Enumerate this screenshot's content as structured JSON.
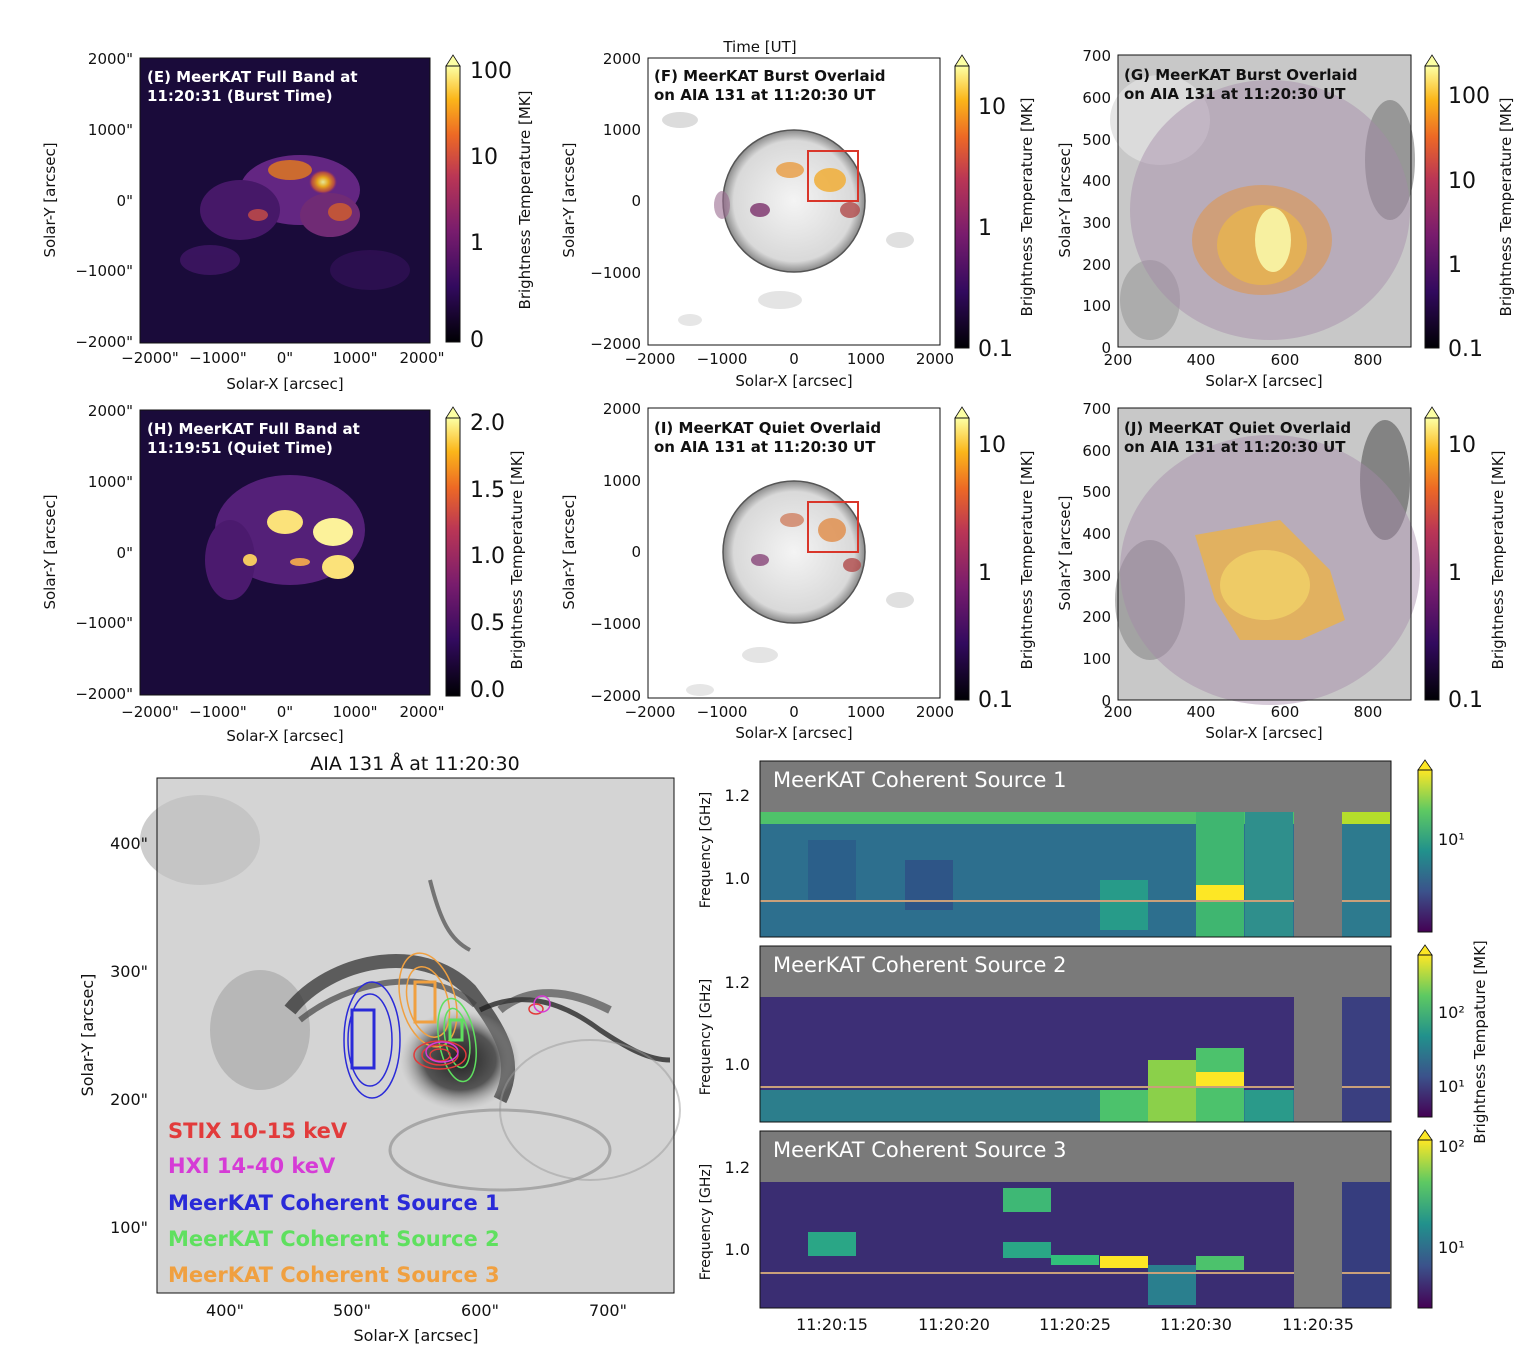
{
  "top_title_fragment": "Time [UT]",
  "panels": {
    "E": {
      "label_line1": "(E) MeerKAT Full Band at",
      "label_line2": "11:20:31 (Burst Time)",
      "xlabel": "Solar-X [arcsec]",
      "ylabel": "Solar-Y [arcsec]",
      "xticks": [
        "−2000\"",
        "−1000\"",
        "0\"",
        "1000\"",
        "2000\""
      ],
      "yticks": [
        "2000\"",
        "1000\"",
        "0\"",
        "−1000\"",
        "−2000\""
      ],
      "cbar_label": "Brightness Temperature [MK]",
      "cbar_ticks": [
        "100",
        "10",
        "1",
        "0"
      ]
    },
    "F": {
      "label_line1": "(F) MeerKAT Burst Overlaid",
      "label_line2": "on AIA 131 at 11:20:30 UT",
      "xlabel": "Solar-X [arcsec]",
      "ylabel": "Solar-Y [arcsec]",
      "xticks": [
        "−2000",
        "−1000",
        "0",
        "1000",
        "2000"
      ],
      "yticks": [
        "2000",
        "1000",
        "0",
        "−1000",
        "−2000"
      ],
      "cbar_label": "Brightness Temperature [MK]",
      "cbar_ticks": [
        "10",
        "1",
        "0.1"
      ]
    },
    "G": {
      "label_line1": "(G) MeerKAT Burst Overlaid",
      "label_line2": "on AIA 131 at 11:20:30 UT",
      "xlabel": "Solar-X [arcsec]",
      "ylabel": "Solar-Y [arcsec]",
      "xticks": [
        "200",
        "400",
        "600",
        "800"
      ],
      "yticks": [
        "700",
        "600",
        "500",
        "400",
        "300",
        "200",
        "100",
        "0"
      ],
      "cbar_label": "Brightness Temperature [MK]",
      "cbar_ticks": [
        "100",
        "10",
        "1",
        "0.1"
      ]
    },
    "H": {
      "label_line1": "(H) MeerKAT Full Band at",
      "label_line2": "11:19:51 (Quiet Time)",
      "xlabel": "Solar-X [arcsec]",
      "ylabel": "Solar-Y [arcsec]",
      "xticks": [
        "−2000\"",
        "−1000\"",
        "0\"",
        "1000\"",
        "2000\""
      ],
      "yticks": [
        "2000\"",
        "1000\"",
        "0\"",
        "−1000\"",
        "−2000\""
      ],
      "cbar_label": "Brightness Temperature [MK]",
      "cbar_ticks": [
        "2.0",
        "1.5",
        "1.0",
        "0.5",
        "0.0"
      ]
    },
    "I": {
      "label_line1": "(I) MeerKAT Quiet Overlaid",
      "label_line2": "on AIA 131 at 11:20:30 UT",
      "xlabel": "Solar-X [arcsec]",
      "ylabel": "Solar-Y [arcsec]",
      "xticks": [
        "−2000",
        "−1000",
        "0",
        "1000",
        "2000"
      ],
      "yticks": [
        "2000",
        "1000",
        "0",
        "−1000",
        "−2000"
      ],
      "cbar_label": "Brightness Temperature [MK]",
      "cbar_ticks": [
        "10",
        "1",
        "0.1"
      ]
    },
    "J": {
      "label_line1": "(J) MeerKAT Quiet Overlaid",
      "label_line2": "on AIA 131 at 11:20:30 UT",
      "xlabel": "Solar-X [arcsec]",
      "ylabel": "Solar-Y [arcsec]",
      "xticks": [
        "200",
        "400",
        "600",
        "800"
      ],
      "yticks": [
        "700",
        "600",
        "500",
        "400",
        "300",
        "200",
        "100",
        "0"
      ],
      "cbar_label": "Brightness Temperature [MK]",
      "cbar_ticks": [
        "10",
        "1",
        "0.1"
      ]
    },
    "AIA": {
      "title": "AIA 131 Å at 11:20:30",
      "xlabel": "Solar-X [arcsec]",
      "ylabel": "Solar-Y [arcsec]",
      "xticks": [
        "400\"",
        "500\"",
        "600\"",
        "700\""
      ],
      "yticks": [
        "400\"",
        "300\"",
        "200\"",
        "100\""
      ],
      "legend": [
        {
          "text": "STIX 10-15 keV",
          "color": "#e23b3b"
        },
        {
          "text": "HXI 14-40 keV",
          "color": "#d63bd6"
        },
        {
          "text": "MeerKAT Coherent Source 1",
          "color": "#2a2ad8"
        },
        {
          "text": "MeerKAT Coherent Source 2",
          "color": "#5fe05f"
        },
        {
          "text": "MeerKAT Coherent Source 3",
          "color": "#f0a040"
        }
      ]
    },
    "spectra": {
      "ylabel": "Frequency [GHz]",
      "yticks": [
        "1.2",
        "1.0"
      ],
      "xticks": [
        "11:20:15",
        "11:20:20",
        "11:20:25",
        "11:20:30",
        "11:20:35"
      ],
      "cbar_label": "Brightness Tempature [MK]",
      "rows": [
        {
          "title": "MeerKAT Coherent Source 1",
          "cbar_ticks": [
            "10¹"
          ]
        },
        {
          "title": "MeerKAT Coherent Source 2",
          "cbar_ticks": [
            "10²",
            "10¹"
          ]
        },
        {
          "title": "MeerKAT Coherent Source 3",
          "cbar_ticks": [
            "10²",
            "10¹"
          ]
        }
      ]
    }
  },
  "chart_data": [
    {
      "type": "heatmap",
      "panel": "E",
      "title": "(E) MeerKAT Full Band at 11:20:31 (Burst Time)",
      "xlim": [
        -2000,
        2000
      ],
      "ylim": [
        -2000,
        2000
      ],
      "colorbar": "Brightness Temperature [MK]",
      "cbar_ticks": [
        0,
        1,
        10,
        100
      ]
    },
    {
      "type": "heatmap",
      "panel": "F",
      "title": "(F) MeerKAT Burst Overlaid on AIA 131 at 11:20:30 UT",
      "xlim": [
        -2000,
        2000
      ],
      "ylim": [
        -2000,
        2000
      ],
      "cbar_ticks": [
        0.1,
        1,
        10
      ]
    },
    {
      "type": "heatmap",
      "panel": "G",
      "title": "(G) MeerKAT Burst Overlaid on AIA 131 at 11:20:30 UT",
      "xlim": [
        200,
        900
      ],
      "ylim": [
        0,
        700
      ],
      "cbar_ticks": [
        0.1,
        1,
        10,
        100
      ]
    },
    {
      "type": "heatmap",
      "panel": "H",
      "title": "(H) MeerKAT Full Band at 11:19:51 (Quiet Time)",
      "xlim": [
        -2000,
        2000
      ],
      "ylim": [
        -2000,
        2000
      ],
      "cbar_ticks": [
        0.0,
        0.5,
        1.0,
        1.5,
        2.0
      ]
    },
    {
      "type": "heatmap",
      "panel": "I",
      "title": "(I) MeerKAT Quiet Overlaid on AIA 131 at 11:20:30 UT",
      "xlim": [
        -2000,
        2000
      ],
      "ylim": [
        -2000,
        2000
      ],
      "cbar_ticks": [
        0.1,
        1,
        10
      ]
    },
    {
      "type": "heatmap",
      "panel": "J",
      "title": "(J) MeerKAT Quiet Overlaid on AIA 131 at 11:20:30 UT",
      "xlim": [
        200,
        900
      ],
      "ylim": [
        0,
        700
      ],
      "cbar_ticks": [
        0.1,
        1,
        10
      ]
    },
    {
      "type": "heatmap",
      "panel": "AIA",
      "title": "AIA 131 Å at 11:20:30",
      "xlim": [
        350,
        750
      ],
      "ylim": [
        60,
        450
      ]
    },
    {
      "type": "heatmap",
      "panel": "spectrum-1",
      "title": "MeerKAT Coherent Source 1",
      "ylim": [
        0.85,
        1.25
      ],
      "xticks": [
        "11:20:15",
        "11:20:20",
        "11:20:25",
        "11:20:30",
        "11:20:35"
      ]
    },
    {
      "type": "heatmap",
      "panel": "spectrum-2",
      "title": "MeerKAT Coherent Source 2",
      "ylim": [
        0.85,
        1.25
      ]
    },
    {
      "type": "heatmap",
      "panel": "spectrum-3",
      "title": "MeerKAT Coherent Source 3",
      "ylim": [
        0.85,
        1.25
      ]
    }
  ]
}
